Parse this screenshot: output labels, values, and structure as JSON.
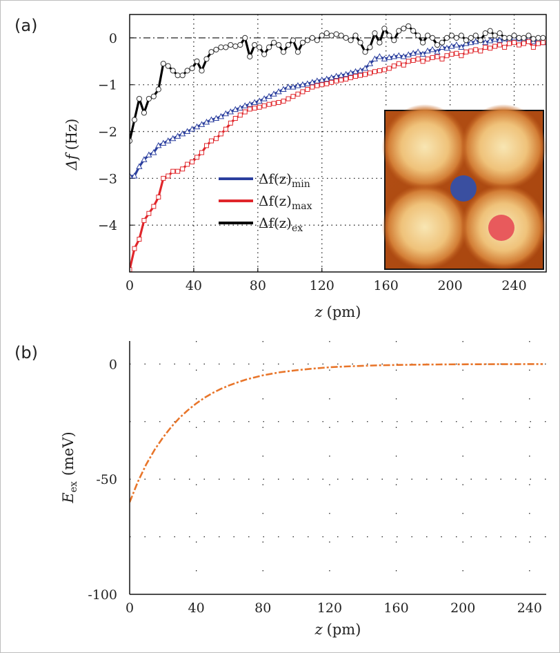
{
  "panels": {
    "a": {
      "label": "(a)"
    },
    "b": {
      "label": "(b)"
    }
  },
  "chart_data": [
    {
      "type": "line",
      "panel": "(a)",
      "title": "",
      "xlabel": {
        "var": "z",
        "unit": "(pm)"
      },
      "ylabel": {
        "var": "Δf",
        "unit": "(Hz)"
      },
      "xlim": [
        0,
        260
      ],
      "ylim": [
        -5,
        0.5
      ],
      "xticks": [
        0,
        40,
        80,
        120,
        160,
        200,
        240
      ],
      "yticks": [
        0,
        -1,
        -2,
        -3,
        -4
      ],
      "grid": true,
      "legend_position": "center",
      "series": [
        {
          "name": "Δf(z)min",
          "legend": {
            "base": "Δf(z)",
            "sub": "min"
          },
          "color": "#2b3f9e",
          "marker": "triangle",
          "x": [
            0,
            3,
            6,
            9,
            12,
            15,
            18,
            21,
            24,
            27,
            30,
            33,
            36,
            39,
            42,
            45,
            48,
            51,
            54,
            57,
            60,
            63,
            66,
            69,
            72,
            75,
            78,
            81,
            84,
            87,
            90,
            93,
            96,
            99,
            102,
            105,
            108,
            111,
            114,
            117,
            120,
            123,
            126,
            129,
            132,
            135,
            138,
            141,
            144,
            147,
            150,
            153,
            156,
            159,
            162,
            165,
            168,
            171,
            174,
            177,
            180,
            183,
            186,
            189,
            192,
            195,
            198,
            201,
            204,
            207,
            210,
            213,
            216,
            219,
            222,
            225,
            228,
            231,
            234,
            237,
            240,
            243,
            246,
            249,
            252,
            255,
            258
          ],
          "y": [
            -2.95,
            -2.95,
            -2.75,
            -2.6,
            -2.5,
            -2.45,
            -2.3,
            -2.25,
            -2.2,
            -2.15,
            -2.1,
            -2.05,
            -2.0,
            -1.95,
            -1.9,
            -1.85,
            -1.8,
            -1.75,
            -1.72,
            -1.68,
            -1.62,
            -1.58,
            -1.53,
            -1.5,
            -1.45,
            -1.42,
            -1.38,
            -1.35,
            -1.3,
            -1.25,
            -1.2,
            -1.15,
            -1.1,
            -1.05,
            -1.05,
            -1.02,
            -1.0,
            -0.98,
            -0.95,
            -0.92,
            -0.9,
            -0.88,
            -0.85,
            -0.82,
            -0.8,
            -0.78,
            -0.75,
            -0.72,
            -0.7,
            -0.65,
            -0.55,
            -0.45,
            -0.4,
            -0.45,
            -0.42,
            -0.4,
            -0.38,
            -0.4,
            -0.36,
            -0.33,
            -0.3,
            -0.35,
            -0.28,
            -0.25,
            -0.3,
            -0.2,
            -0.22,
            -0.18,
            -0.15,
            -0.2,
            -0.12,
            -0.1,
            -0.08,
            -0.05,
            -0.1,
            -0.06,
            -0.03,
            -0.05,
            -0.02,
            -0.04,
            0.0,
            -0.02,
            -0.05,
            -0.03,
            -0.08,
            -0.05,
            -0.1
          ]
        },
        {
          "name": "Δf(z)max",
          "legend": {
            "base": "Δf(z)",
            "sub": "max"
          },
          "color": "#e0262b",
          "marker": "square",
          "x": [
            0,
            3,
            6,
            9,
            12,
            15,
            18,
            21,
            24,
            27,
            30,
            33,
            36,
            39,
            42,
            45,
            48,
            51,
            54,
            57,
            60,
            63,
            66,
            69,
            72,
            75,
            78,
            81,
            84,
            87,
            90,
            93,
            96,
            99,
            102,
            105,
            108,
            111,
            114,
            117,
            120,
            123,
            126,
            129,
            132,
            135,
            138,
            141,
            144,
            147,
            150,
            153,
            156,
            159,
            162,
            165,
            168,
            171,
            174,
            177,
            180,
            183,
            186,
            189,
            192,
            195,
            198,
            201,
            204,
            207,
            210,
            213,
            216,
            219,
            222,
            225,
            228,
            231,
            234,
            237,
            240,
            243,
            246,
            249,
            252,
            255,
            258
          ],
          "y": [
            -4.95,
            -4.5,
            -4.3,
            -3.9,
            -3.75,
            -3.6,
            -3.4,
            -3.0,
            -2.95,
            -2.85,
            -2.85,
            -2.8,
            -2.7,
            -2.65,
            -2.55,
            -2.45,
            -2.3,
            -2.2,
            -2.15,
            -2.05,
            -1.95,
            -1.82,
            -1.72,
            -1.65,
            -1.58,
            -1.52,
            -1.5,
            -1.48,
            -1.45,
            -1.42,
            -1.4,
            -1.38,
            -1.35,
            -1.3,
            -1.25,
            -1.2,
            -1.15,
            -1.1,
            -1.05,
            -1.02,
            -1.0,
            -0.98,
            -0.95,
            -0.92,
            -0.9,
            -0.88,
            -0.85,
            -0.82,
            -0.8,
            -0.78,
            -0.75,
            -0.72,
            -0.7,
            -0.68,
            -0.65,
            -0.6,
            -0.55,
            -0.58,
            -0.5,
            -0.48,
            -0.45,
            -0.5,
            -0.45,
            -0.42,
            -0.4,
            -0.45,
            -0.38,
            -0.35,
            -0.33,
            -0.38,
            -0.3,
            -0.28,
            -0.25,
            -0.28,
            -0.2,
            -0.22,
            -0.18,
            -0.15,
            -0.2,
            -0.12,
            -0.1,
            -0.15,
            -0.12,
            -0.08,
            -0.2,
            -0.12,
            -0.1
          ]
        },
        {
          "name": "Δf(z)ex",
          "legend": {
            "base": "Δf(z)",
            "sub": "ex"
          },
          "color": "#000000",
          "marker": "circle",
          "x": [
            0,
            3,
            6,
            9,
            12,
            15,
            18,
            21,
            24,
            27,
            30,
            33,
            36,
            39,
            42,
            45,
            48,
            51,
            54,
            57,
            60,
            63,
            66,
            69,
            72,
            75,
            78,
            81,
            84,
            87,
            90,
            93,
            96,
            99,
            102,
            105,
            108,
            111,
            114,
            117,
            120,
            123,
            126,
            129,
            132,
            135,
            138,
            141,
            144,
            147,
            150,
            153,
            156,
            159,
            162,
            165,
            168,
            171,
            174,
            177,
            180,
            183,
            186,
            189,
            192,
            195,
            198,
            201,
            204,
            207,
            210,
            213,
            216,
            219,
            222,
            225,
            228,
            231,
            234,
            237,
            240,
            243,
            246,
            249,
            252,
            255,
            258
          ],
          "y": [
            -2.2,
            -1.75,
            -1.3,
            -1.6,
            -1.3,
            -1.25,
            -1.1,
            -0.55,
            -0.6,
            -0.7,
            -0.8,
            -0.8,
            -0.7,
            -0.65,
            -0.5,
            -0.7,
            -0.45,
            -0.3,
            -0.25,
            -0.2,
            -0.2,
            -0.15,
            -0.18,
            -0.15,
            0.0,
            -0.4,
            -0.15,
            -0.2,
            -0.35,
            -0.2,
            -0.1,
            -0.15,
            -0.3,
            -0.15,
            -0.05,
            -0.3,
            -0.1,
            -0.05,
            0.0,
            -0.05,
            0.05,
            0.1,
            0.05,
            0.08,
            0.05,
            0.0,
            -0.05,
            0.05,
            -0.1,
            -0.3,
            -0.2,
            0.1,
            -0.1,
            0.2,
            0.05,
            -0.05,
            0.15,
            0.2,
            0.25,
            0.15,
            0.05,
            -0.1,
            0.05,
            0.0,
            -0.15,
            -0.1,
            0.0,
            0.05,
            0.0,
            0.05,
            -0.05,
            0.0,
            0.05,
            -0.05,
            0.1,
            0.15,
            0.05,
            0.1,
            0.0,
            0.0,
            0.05,
            0.0,
            0.0,
            0.05,
            -0.02,
            0.0,
            0.0
          ]
        }
      ],
      "inset": {
        "type": "image",
        "description_colors": [
          "#c25a1a",
          "#f6dda0"
        ],
        "markers": [
          {
            "name": "min",
            "color": "#3a4fa0"
          },
          {
            "name": "max",
            "color": "#e85a5c"
          }
        ]
      }
    },
    {
      "type": "line",
      "panel": "(b)",
      "title": "",
      "xlabel": {
        "var": "z",
        "unit": "(pm)"
      },
      "ylabel": {
        "var": "E",
        "sub": "ex",
        "unit": "(meV)"
      },
      "xlim": [
        0,
        250
      ],
      "ylim": [
        -100,
        10
      ],
      "xticks": [
        0,
        40,
        80,
        120,
        160,
        200,
        240
      ],
      "yticks": [
        0,
        -50,
        -100
      ],
      "ytick_labels": [
        "0",
        "-50",
        "-100"
      ],
      "grid": true,
      "series": [
        {
          "name": "",
          "color": "#e8752a",
          "style": "dashed",
          "x": [
            0,
            5,
            10,
            15,
            20,
            25,
            30,
            35,
            40,
            45,
            50,
            55,
            60,
            65,
            70,
            75,
            80,
            90,
            100,
            110,
            120,
            130,
            140,
            150,
            160,
            170,
            180,
            190,
            200,
            210,
            220,
            230,
            240,
            248
          ],
          "y": [
            -60,
            -51,
            -43.5,
            -37.2,
            -31.9,
            -27.3,
            -23.3,
            -20.0,
            -17.1,
            -14.6,
            -12.5,
            -10.7,
            -9.2,
            -7.9,
            -6.7,
            -5.8,
            -4.9,
            -3.6,
            -2.7,
            -2.0,
            -1.4,
            -1.05,
            -0.77,
            -0.56,
            -0.41,
            -0.3,
            -0.22,
            -0.16,
            -0.12,
            -0.09,
            -0.06,
            -0.05,
            -0.03,
            -0.02
          ]
        }
      ]
    }
  ]
}
